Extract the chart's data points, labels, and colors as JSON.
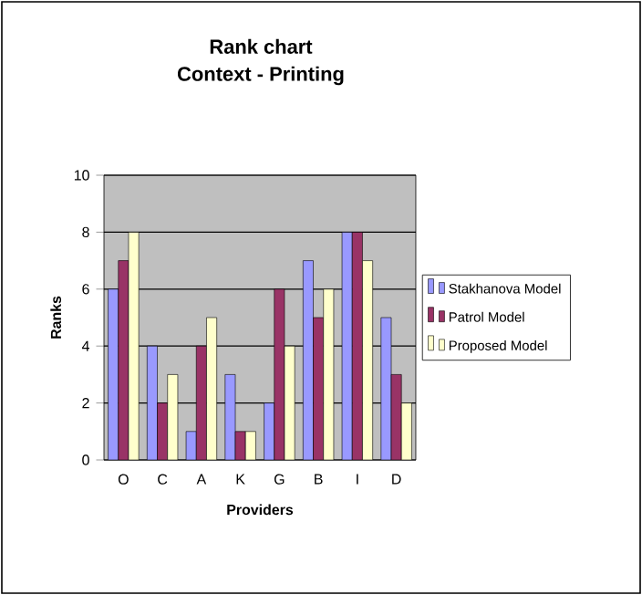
{
  "chart_data": {
    "type": "bar",
    "title": "Rank chart",
    "subtitle": "Context - Printing",
    "xlabel": "Providers",
    "ylabel": "Ranks",
    "categories": [
      "O",
      "C",
      "A",
      "K",
      "G",
      "B",
      "I",
      "D"
    ],
    "series": [
      {
        "name": "Stakhanova Model",
        "color": "#9999ff",
        "values": [
          6,
          4,
          1,
          3,
          2,
          7,
          8,
          5
        ]
      },
      {
        "name": "Patrol Model",
        "color": "#993366",
        "values": [
          7,
          2,
          4,
          1,
          6,
          5,
          8,
          3
        ]
      },
      {
        "name": "Proposed Model",
        "color": "#ffffcc",
        "values": [
          8,
          3,
          5,
          1,
          4,
          6,
          7,
          2
        ]
      }
    ],
    "ylim": [
      0,
      10
    ],
    "yticks": [
      0,
      2,
      4,
      6,
      8,
      10
    ],
    "grid": "y",
    "legend": "right"
  }
}
